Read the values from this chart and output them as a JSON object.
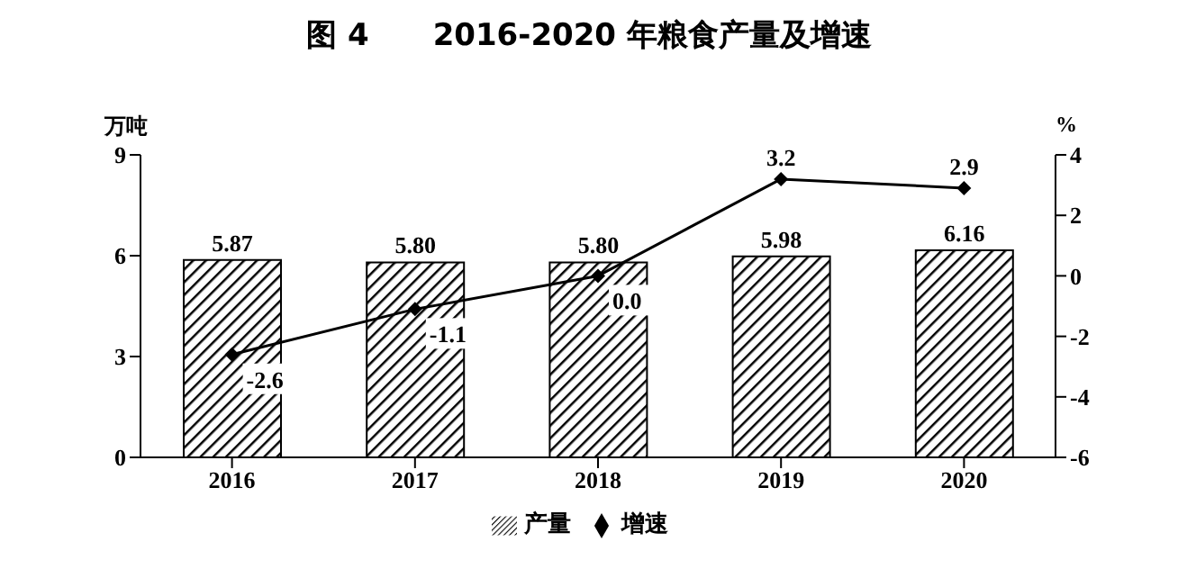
{
  "chart_data": {
    "type": "bar",
    "title": "图 4      2016-2020 年粮食产量及增速",
    "ylabel": "万吨",
    "y2label": "%",
    "categories": [
      "2016",
      "2017",
      "2018",
      "2019",
      "2020"
    ],
    "series": [
      {
        "name": "产量",
        "color": "#000000",
        "values": [
          5.87,
          5.8,
          5.8,
          5.98,
          6.16
        ]
      },
      {
        "name": "增速",
        "type": "line",
        "axis": "y2",
        "color": "#000000",
        "marker": "diamond",
        "values": [
          -2.6,
          -1.1,
          0.0,
          3.2,
          2.9
        ]
      }
    ],
    "value_labels": [
      [
        "5.87",
        "5.80",
        "5.80",
        "5.98",
        "6.16"
      ],
      [
        "-2.6",
        "-1.1",
        "0.0",
        "3.2",
        "2.9"
      ]
    ],
    "ylim": [
      0,
      9
    ],
    "yticks": [
      0,
      3,
      6,
      9
    ],
    "y2lim": [
      -6,
      4
    ],
    "y2ticks": [
      -6,
      -4,
      -2,
      0,
      2,
      4
    ],
    "grid": false,
    "legend": "bottom"
  }
}
